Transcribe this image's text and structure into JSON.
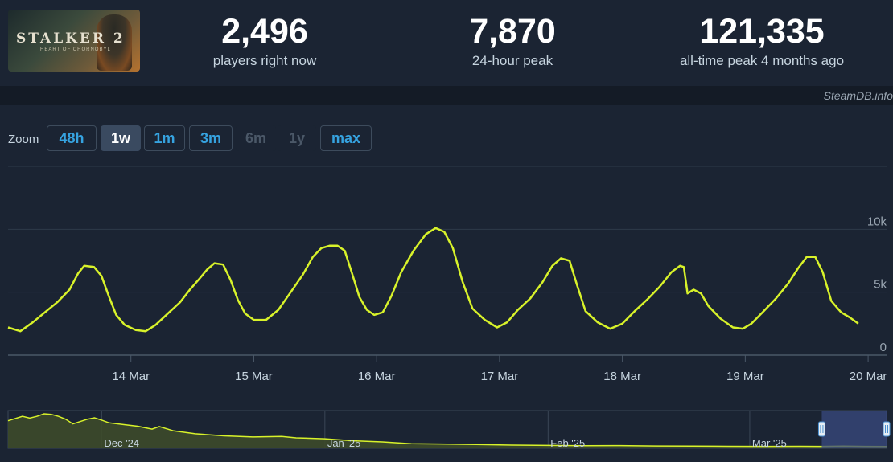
{
  "game": {
    "title_art": "STALKER 2",
    "subtitle_art": "HEART OF CHORNOBYL"
  },
  "stats": [
    {
      "value": "2,496",
      "label": "players right now"
    },
    {
      "value": "7,870",
      "label": "24-hour peak"
    },
    {
      "value": "121,335",
      "label": "all-time peak 4 months ago"
    }
  ],
  "credit": "SteamDB.info",
  "zoom": {
    "label": "Zoom",
    "options": [
      {
        "label": "48h",
        "state": "enabled"
      },
      {
        "label": "1w",
        "state": "active"
      },
      {
        "label": "1m",
        "state": "enabled"
      },
      {
        "label": "3m",
        "state": "enabled"
      },
      {
        "label": "6m",
        "state": "disabled"
      },
      {
        "label": "1y",
        "state": "disabled"
      },
      {
        "label": "max",
        "state": "enabled"
      }
    ]
  },
  "chart_data": [
    {
      "type": "line",
      "title": "",
      "xlabel": "",
      "ylabel": "",
      "x_unit": "days (13 Mar 2025 00:00 = 0)",
      "x_ticks": [
        {
          "x": 1,
          "label": "14 Mar"
        },
        {
          "x": 2,
          "label": "15 Mar"
        },
        {
          "x": 3,
          "label": "16 Mar"
        },
        {
          "x": 4,
          "label": "17 Mar"
        },
        {
          "x": 5,
          "label": "18 Mar"
        },
        {
          "x": 6,
          "label": "19 Mar"
        },
        {
          "x": 7,
          "label": "20 Mar"
        }
      ],
      "y_ticks": [
        {
          "y": 0,
          "label": "0"
        },
        {
          "y": 5000,
          "label": "5k"
        },
        {
          "y": 10000,
          "label": "10k"
        }
      ],
      "xlim": [
        0,
        7.15
      ],
      "ylim": [
        0,
        15000
      ],
      "grid": true,
      "color": "#d8f22a",
      "series": [
        {
          "name": "",
          "points": [
            [
              0.0,
              2200
            ],
            [
              0.1,
              1900
            ],
            [
              0.2,
              2600
            ],
            [
              0.3,
              3400
            ],
            [
              0.4,
              4200
            ],
            [
              0.5,
              5200
            ],
            [
              0.57,
              6500
            ],
            [
              0.62,
              7100
            ],
            [
              0.7,
              7000
            ],
            [
              0.76,
              6300
            ],
            [
              0.82,
              4700
            ],
            [
              0.88,
              3200
            ],
            [
              0.95,
              2400
            ],
            [
              1.04,
              2000
            ],
            [
              1.12,
              1900
            ],
            [
              1.2,
              2400
            ],
            [
              1.3,
              3300
            ],
            [
              1.4,
              4200
            ],
            [
              1.48,
              5200
            ],
            [
              1.56,
              6100
            ],
            [
              1.62,
              6800
            ],
            [
              1.68,
              7300
            ],
            [
              1.75,
              7200
            ],
            [
              1.81,
              6000
            ],
            [
              1.87,
              4400
            ],
            [
              1.93,
              3300
            ],
            [
              2.0,
              2800
            ],
            [
              2.1,
              2800
            ],
            [
              2.2,
              3600
            ],
            [
              2.3,
              5000
            ],
            [
              2.4,
              6400
            ],
            [
              2.48,
              7800
            ],
            [
              2.55,
              8500
            ],
            [
              2.62,
              8700
            ],
            [
              2.68,
              8700
            ],
            [
              2.74,
              8300
            ],
            [
              2.8,
              6500
            ],
            [
              2.86,
              4600
            ],
            [
              2.92,
              3600
            ],
            [
              2.98,
              3200
            ],
            [
              3.05,
              3400
            ],
            [
              3.12,
              4700
            ],
            [
              3.2,
              6600
            ],
            [
              3.3,
              8300
            ],
            [
              3.4,
              9600
            ],
            [
              3.48,
              10100
            ],
            [
              3.55,
              9800
            ],
            [
              3.62,
              8500
            ],
            [
              3.7,
              5800
            ],
            [
              3.78,
              3700
            ],
            [
              3.88,
              2800
            ],
            [
              3.98,
              2200
            ],
            [
              4.06,
              2600
            ],
            [
              4.15,
              3600
            ],
            [
              4.25,
              4500
            ],
            [
              4.35,
              5800
            ],
            [
              4.43,
              7100
            ],
            [
              4.5,
              7700
            ],
            [
              4.57,
              7500
            ],
            [
              4.63,
              5600
            ],
            [
              4.7,
              3500
            ],
            [
              4.8,
              2600
            ],
            [
              4.9,
              2100
            ],
            [
              5.0,
              2500
            ],
            [
              5.1,
              3500
            ],
            [
              5.2,
              4400
            ],
            [
              5.3,
              5400
            ],
            [
              5.4,
              6600
            ],
            [
              5.47,
              7100
            ],
            [
              5.5,
              7000
            ],
            [
              5.53,
              4900
            ],
            [
              5.58,
              5200
            ],
            [
              5.64,
              4900
            ],
            [
              5.7,
              3900
            ],
            [
              5.8,
              2900
            ],
            [
              5.9,
              2200
            ],
            [
              5.98,
              2100
            ],
            [
              6.05,
              2500
            ],
            [
              6.15,
              3500
            ],
            [
              6.25,
              4500
            ],
            [
              6.35,
              5700
            ],
            [
              6.43,
              6900
            ],
            [
              6.5,
              7800
            ],
            [
              6.57,
              7800
            ],
            [
              6.63,
              6600
            ],
            [
              6.7,
              4300
            ],
            [
              6.78,
              3400
            ],
            [
              6.85,
              3000
            ],
            [
              6.92,
              2500
            ]
          ]
        }
      ]
    },
    {
      "type": "area",
      "title": "",
      "xlabel": "",
      "ylabel": "",
      "x_unit": "days (18 Nov 2024 00:00 = 0)",
      "x_ticks": [
        {
          "x": 13,
          "label": "Dec '24"
        },
        {
          "x": 44,
          "label": "Jan '25"
        },
        {
          "x": 75,
          "label": "Feb '25"
        },
        {
          "x": 103,
          "label": "Mar '25"
        }
      ],
      "xlim": [
        0,
        122
      ],
      "ylim": [
        0,
        130000
      ],
      "grid": true,
      "color": "#d8f22a",
      "selected_range": [
        113,
        122
      ],
      "series": [
        {
          "name": "",
          "points": [
            [
              0,
              95000
            ],
            [
              2,
              110000
            ],
            [
              3,
              104000
            ],
            [
              4,
              110000
            ],
            [
              5,
              119000
            ],
            [
              6,
              117000
            ],
            [
              7,
              110000
            ],
            [
              8,
              100000
            ],
            [
              9,
              84000
            ],
            [
              10,
              92000
            ],
            [
              11,
              100000
            ],
            [
              12,
              105000
            ],
            [
              13,
              97000
            ],
            [
              14,
              88000
            ],
            [
              16,
              82000
            ],
            [
              18,
              76000
            ],
            [
              20,
              66000
            ],
            [
              21,
              75000
            ],
            [
              23,
              60000
            ],
            [
              26,
              50000
            ],
            [
              30,
              43000
            ],
            [
              34,
              39000
            ],
            [
              38,
              41000
            ],
            [
              40,
              36000
            ],
            [
              44,
              33000
            ],
            [
              48,
              26000
            ],
            [
              52,
              22000
            ],
            [
              56,
              16000
            ],
            [
              60,
              15000
            ],
            [
              65,
              13000
            ],
            [
              70,
              11000
            ],
            [
              75,
              10000
            ],
            [
              80,
              9000
            ],
            [
              85,
              9500
            ],
            [
              90,
              8000
            ],
            [
              95,
              7500
            ],
            [
              100,
              7000
            ],
            [
              105,
              6500
            ],
            [
              110,
              7000
            ],
            [
              113,
              6500
            ],
            [
              116,
              7500
            ],
            [
              119,
              6500
            ],
            [
              122,
              6000
            ]
          ]
        }
      ]
    }
  ]
}
